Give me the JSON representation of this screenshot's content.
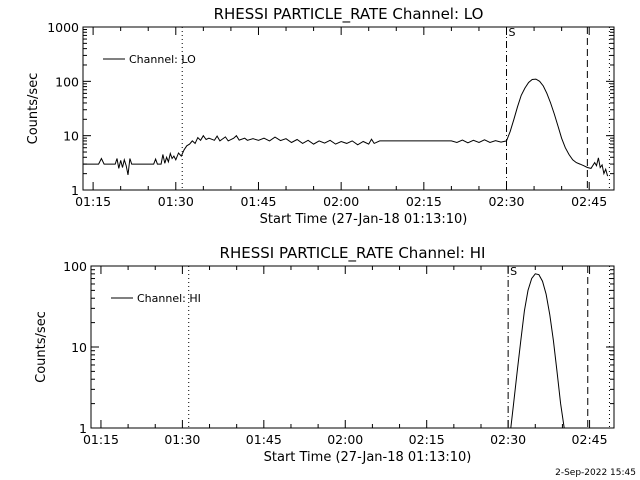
{
  "chart_data": [
    {
      "type": "line",
      "title": "RHESSI PARTICLE_RATE Channel: LO",
      "xlabel": "Start Time (27-Jan-18 01:13:10)",
      "ylabel": "Counts/sec",
      "yscale": "log",
      "xlim": [
        "01:13:10",
        "02:49:30"
      ],
      "ylim": [
        1,
        1000
      ],
      "xticks": [
        "01:15",
        "01:30",
        "01:45",
        "02:00",
        "02:15",
        "02:30",
        "02:45"
      ],
      "yticks": [
        "1",
        "10",
        "100",
        "1000"
      ],
      "legend": {
        "label": "Channel: LO",
        "position": "top-left"
      },
      "marker_label": "S",
      "vlines": [
        {
          "x": "01:31:10",
          "style": "dotted"
        },
        {
          "x": "02:30:00",
          "style": "dash-dot"
        },
        {
          "x": "02:44:40",
          "style": "dashed"
        },
        {
          "x": "02:48:40",
          "style": "dotted"
        }
      ],
      "series": [
        {
          "name": "Channel: LO",
          "points": [
            [
              "01:13:10",
              3.0
            ],
            [
              "01:16:00",
              3.0
            ],
            [
              "01:16:30",
              3.8
            ],
            [
              "01:17:00",
              3.0
            ],
            [
              "01:19:00",
              3.0
            ],
            [
              "01:19:20",
              3.8
            ],
            [
              "01:19:40",
              2.5
            ],
            [
              "01:20:00",
              3.5
            ],
            [
              "01:20:20",
              2.6
            ],
            [
              "01:20:40",
              3.6
            ],
            [
              "01:21:00",
              2.8
            ],
            [
              "01:21:20",
              1.9
            ],
            [
              "01:21:40",
              3.8
            ],
            [
              "01:22:00",
              3.0
            ],
            [
              "01:26:00",
              3.0
            ],
            [
              "01:26:20",
              3.7
            ],
            [
              "01:26:40",
              3.0
            ],
            [
              "01:27:20",
              3.0
            ],
            [
              "01:27:40",
              4.5
            ],
            [
              "01:28:00",
              3.1
            ],
            [
              "01:28:20",
              4.0
            ],
            [
              "01:28:40",
              3.3
            ],
            [
              "01:29:00",
              4.7
            ],
            [
              "01:29:20",
              3.8
            ],
            [
              "01:29:40",
              4.2
            ],
            [
              "01:30:00",
              3.6
            ],
            [
              "01:30:30",
              4.8
            ],
            [
              "01:31:00",
              4.2
            ],
            [
              "01:31:30",
              5.5
            ],
            [
              "01:32:00",
              6.5
            ],
            [
              "01:32:30",
              7.0
            ],
            [
              "01:33:00",
              8.0
            ],
            [
              "01:33:30",
              7.2
            ],
            [
              "01:34:00",
              9.2
            ],
            [
              "01:34:30",
              8.2
            ],
            [
              "01:35:00",
              10.0
            ],
            [
              "01:35:30",
              8.5
            ],
            [
              "01:36:00",
              9.0
            ],
            [
              "01:37:00",
              8.2
            ],
            [
              "01:37:30",
              9.8
            ],
            [
              "01:38:00",
              8.0
            ],
            [
              "01:39:00",
              9.5
            ],
            [
              "01:39:30",
              8.0
            ],
            [
              "01:40:30",
              9.0
            ],
            [
              "01:41:00",
              10.0
            ],
            [
              "01:41:30",
              8.3
            ],
            [
              "01:42:30",
              9.0
            ],
            [
              "01:43:00",
              8.2
            ],
            [
              "01:44:00",
              8.8
            ],
            [
              "01:45:00",
              8.2
            ],
            [
              "01:46:00",
              9.0
            ],
            [
              "01:47:00",
              8.0
            ],
            [
              "01:48:00",
              9.4
            ],
            [
              "01:49:00",
              8.1
            ],
            [
              "01:50:00",
              8.8
            ],
            [
              "01:51:00",
              7.5
            ],
            [
              "01:52:00",
              8.5
            ],
            [
              "01:53:00",
              7.2
            ],
            [
              "01:54:00",
              8.2
            ],
            [
              "01:55:00",
              7.0
            ],
            [
              "01:56:00",
              8.0
            ],
            [
              "01:57:00",
              7.3
            ],
            [
              "01:58:00",
              8.2
            ],
            [
              "01:59:00",
              7.0
            ],
            [
              "02:00:00",
              7.8
            ],
            [
              "02:01:00",
              7.2
            ],
            [
              "02:02:00",
              8.0
            ],
            [
              "02:03:00",
              6.8
            ],
            [
              "02:04:00",
              7.8
            ],
            [
              "02:05:00",
              7.0
            ],
            [
              "02:05:30",
              8.6
            ],
            [
              "02:06:00",
              7.2
            ],
            [
              "02:07:00",
              8.0
            ],
            [
              "02:08:00",
              8.0
            ],
            [
              "02:20:00",
              8.0
            ],
            [
              "02:21:00",
              7.5
            ],
            [
              "02:22:00",
              8.3
            ],
            [
              "02:23:00",
              7.4
            ],
            [
              "02:24:00",
              8.2
            ],
            [
              "02:25:00",
              7.5
            ],
            [
              "02:26:00",
              8.4
            ],
            [
              "02:27:00",
              7.5
            ],
            [
              "02:28:00",
              8.1
            ],
            [
              "02:29:00",
              7.6
            ],
            [
              "02:30:00",
              8.0
            ],
            [
              "02:30:40",
              12.0
            ],
            [
              "02:31:20",
              20.0
            ],
            [
              "02:32:00",
              34.0
            ],
            [
              "02:32:40",
              55.0
            ],
            [
              "02:33:20",
              75.0
            ],
            [
              "02:34:00",
              95.0
            ],
            [
              "02:34:40",
              108.0
            ],
            [
              "02:35:20",
              110.0
            ],
            [
              "02:36:00",
              100.0
            ],
            [
              "02:36:40",
              82.0
            ],
            [
              "02:37:20",
              60.0
            ],
            [
              "02:38:00",
              40.0
            ],
            [
              "02:38:40",
              25.0
            ],
            [
              "02:39:20",
              15.0
            ],
            [
              "02:40:00",
              9.0
            ],
            [
              "02:40:40",
              6.0
            ],
            [
              "02:41:20",
              4.5
            ],
            [
              "02:42:00",
              3.6
            ],
            [
              "02:42:40",
              3.2
            ],
            [
              "02:43:20",
              3.0
            ],
            [
              "02:44:00",
              2.8
            ],
            [
              "02:44:40",
              2.6
            ],
            [
              "02:45:20",
              2.5
            ],
            [
              "02:46:00",
              3.2
            ],
            [
              "02:46:20",
              2.8
            ],
            [
              "02:46:40",
              3.9
            ],
            [
              "02:47:00",
              2.6
            ],
            [
              "02:47:20",
              2.9
            ],
            [
              "02:47:40",
              2.0
            ],
            [
              "02:48:00",
              2.4
            ],
            [
              "02:48:20",
              1.8
            ]
          ]
        }
      ]
    },
    {
      "type": "line",
      "title": "RHESSI PARTICLE_RATE Channel: HI",
      "xlabel": "Start Time (27-Jan-18 01:13:10)",
      "ylabel": "Counts/sec",
      "yscale": "log",
      "xlim": [
        "01:13:10",
        "02:49:30"
      ],
      "ylim": [
        1,
        100
      ],
      "xticks": [
        "01:15",
        "01:30",
        "01:45",
        "02:00",
        "02:15",
        "02:30",
        "02:45"
      ],
      "yticks": [
        "1",
        "10",
        "100"
      ],
      "legend": {
        "label": "Channel: HI",
        "position": "top-left"
      },
      "marker_label": "S",
      "vlines": [
        {
          "x": "01:31:10",
          "style": "dotted"
        },
        {
          "x": "02:30:00",
          "style": "dash-dot"
        },
        {
          "x": "02:44:40",
          "style": "dashed"
        },
        {
          "x": "02:48:40",
          "style": "dotted"
        }
      ],
      "series": [
        {
          "name": "Channel: HI",
          "points": [
            [
              "02:30:30",
              1.0
            ],
            [
              "02:31:00",
              2.0
            ],
            [
              "02:31:40",
              5.0
            ],
            [
              "02:32:20",
              12.0
            ],
            [
              "02:33:00",
              28.0
            ],
            [
              "02:33:40",
              50.0
            ],
            [
              "02:34:20",
              70.0
            ],
            [
              "02:35:00",
              80.0
            ],
            [
              "02:35:40",
              78.0
            ],
            [
              "02:36:20",
              65.0
            ],
            [
              "02:37:00",
              45.0
            ],
            [
              "02:37:40",
              25.0
            ],
            [
              "02:38:20",
              12.0
            ],
            [
              "02:39:00",
              5.0
            ],
            [
              "02:39:40",
              2.0
            ],
            [
              "02:40:20",
              1.0
            ]
          ]
        }
      ]
    }
  ],
  "footer": {
    "timestamp": "2-Sep-2022 15:45"
  }
}
